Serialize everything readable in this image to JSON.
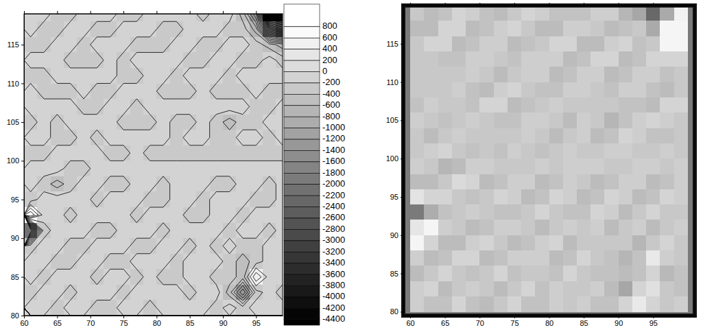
{
  "chart_data": [
    {
      "type": "contour",
      "x": [
        61,
        63,
        65,
        67,
        69,
        71,
        73,
        75,
        77,
        79,
        81,
        83,
        85,
        87,
        89,
        91,
        93,
        95,
        97,
        99
      ],
      "y": [
        119,
        117,
        115,
        113,
        111,
        109,
        107,
        105,
        103,
        101,
        99,
        97,
        95,
        93,
        91,
        89,
        87,
        85,
        83,
        81
      ],
      "cells": [
        [
          -100,
          -100,
          -300,
          -300,
          -100,
          -100,
          -100,
          -300,
          -300,
          -100,
          -100,
          -100,
          -100,
          -300,
          -100,
          -100,
          -500,
          -1400,
          -4400,
          -4400
        ],
        [
          -100,
          -300,
          -300,
          -100,
          -100,
          -300,
          -300,
          -100,
          -100,
          -100,
          -300,
          -300,
          -100,
          -100,
          -100,
          -300,
          -300,
          -700,
          -2400,
          -3000
        ],
        [
          -300,
          -300,
          -100,
          -100,
          -300,
          -100,
          -100,
          -100,
          -300,
          -300,
          -300,
          -100,
          -100,
          -300,
          -300,
          -100,
          -100,
          -300,
          -500,
          -700
        ],
        [
          -100,
          -100,
          -100,
          -300,
          -300,
          -300,
          -100,
          -300,
          -100,
          -100,
          -100,
          -100,
          -300,
          -300,
          -100,
          -100,
          -300,
          -300,
          -100,
          -300
        ],
        [
          -300,
          -300,
          -100,
          -100,
          -100,
          -100,
          -100,
          -300,
          -300,
          -100,
          -100,
          -300,
          -100,
          -100,
          -100,
          -300,
          -100,
          -100,
          -100,
          -100
        ],
        [
          -100,
          -300,
          -300,
          -300,
          -100,
          -300,
          -300,
          -100,
          -100,
          -100,
          -300,
          -300,
          -300,
          -100,
          -300,
          -300,
          -300,
          -100,
          -300,
          -300
        ],
        [
          -100,
          -100,
          -100,
          -100,
          -300,
          -300,
          -100,
          -100,
          -300,
          -100,
          -100,
          -100,
          -100,
          -100,
          -100,
          -100,
          -100,
          -300,
          -300,
          -100
        ],
        [
          -300,
          -100,
          -300,
          -100,
          -100,
          -100,
          -100,
          -300,
          -300,
          -300,
          -100,
          -300,
          -300,
          -100,
          -300,
          -500,
          -300,
          -300,
          -100,
          -100
        ],
        [
          -100,
          -100,
          -300,
          -300,
          -100,
          -300,
          -100,
          -100,
          -100,
          -100,
          -100,
          -300,
          -100,
          -100,
          -300,
          -300,
          -100,
          -100,
          -300,
          -100
        ],
        [
          -300,
          -300,
          -100,
          -100,
          -100,
          -100,
          -300,
          -300,
          -100,
          -300,
          -300,
          -300,
          -300,
          -300,
          -300,
          -300,
          -300,
          -300,
          -300,
          -300
        ],
        [
          -100,
          -100,
          -100,
          -300,
          -300,
          -100,
          -100,
          -100,
          -100,
          -100,
          -100,
          -100,
          -100,
          -100,
          -100,
          -100,
          -100,
          -100,
          -100,
          -100
        ],
        [
          -100,
          -300,
          -500,
          -300,
          -100,
          -100,
          -300,
          -300,
          -100,
          -100,
          -300,
          -100,
          -100,
          -100,
          -300,
          -300,
          -100,
          -100,
          -300,
          -100
        ],
        [
          -300,
          -100,
          -100,
          -100,
          -100,
          -300,
          -100,
          -100,
          -100,
          -300,
          -300,
          -100,
          -100,
          -300,
          -100,
          -100,
          -100,
          -300,
          -300,
          -100
        ],
        [
          600,
          -100,
          -100,
          -300,
          -100,
          -100,
          -100,
          -100,
          -300,
          -100,
          -100,
          -100,
          -300,
          -300,
          -100,
          -100,
          -300,
          -100,
          -100,
          -100
        ],
        [
          -2200,
          -300,
          -100,
          -100,
          -100,
          -300,
          -300,
          -100,
          -100,
          -100,
          -300,
          -100,
          -100,
          -100,
          -100,
          -300,
          -100,
          -100,
          -300,
          -100
        ],
        [
          -300,
          -100,
          -100,
          -300,
          -300,
          -100,
          -100,
          -100,
          -300,
          -300,
          -100,
          -100,
          -300,
          -100,
          -300,
          -100,
          -300,
          -300,
          -100,
          -100
        ],
        [
          -100,
          -100,
          -300,
          -300,
          -100,
          -100,
          -300,
          -300,
          -100,
          -100,
          -100,
          -300,
          -100,
          -100,
          -100,
          -300,
          -500,
          -300,
          -100,
          -100
        ],
        [
          -100,
          -300,
          -100,
          -100,
          -100,
          -300,
          -100,
          -100,
          -300,
          -100,
          -300,
          -300,
          -100,
          -100,
          -300,
          -300,
          -500,
          400,
          -100,
          -100
        ],
        [
          -300,
          -100,
          -100,
          -300,
          -100,
          -100,
          -100,
          -300,
          -100,
          -100,
          -100,
          -100,
          -300,
          -100,
          -100,
          -500,
          -1400,
          -300,
          -100,
          -300
        ],
        [
          -100,
          -100,
          -300,
          -100,
          -100,
          -300,
          -300,
          -100,
          -100,
          -300,
          -100,
          -100,
          -100,
          -100,
          -300,
          -100,
          -300,
          -100,
          -100,
          -100
        ]
      ],
      "xlim": [
        60,
        99
      ],
      "ylim": [
        80,
        119
      ],
      "xticks": [
        60,
        65,
        70,
        75,
        80,
        85,
        90,
        95
      ],
      "yticks": [
        80,
        85,
        90,
        95,
        100,
        105,
        110,
        115
      ],
      "colorbar_range": [
        -4500,
        1200
      ],
      "colorbar_ticks": [
        800,
        600,
        400,
        200,
        0,
        -200,
        -400,
        -600,
        -800,
        -1000,
        -1200,
        -1400,
        -1600,
        -1800,
        -2000,
        -2200,
        -2400,
        -2600,
        -2800,
        -3000,
        -3200,
        -3400,
        -3600,
        -3800,
        -4000,
        -4200,
        -4400
      ]
    },
    {
      "type": "shaded_relief",
      "x": [
        61,
        63,
        65,
        67,
        69,
        71,
        73,
        75,
        77,
        79,
        81,
        83,
        85,
        87,
        89,
        91,
        93,
        95,
        97,
        99
      ],
      "y": [
        119,
        117,
        115,
        113,
        111,
        109,
        107,
        105,
        103,
        101,
        99,
        97,
        95,
        93,
        91,
        89,
        87,
        85,
        83,
        81
      ],
      "cells": [
        [
          -100,
          -100,
          -300,
          -300,
          -100,
          -100,
          -100,
          -300,
          -300,
          -100,
          -100,
          -100,
          -100,
          -300,
          -100,
          -100,
          -500,
          -1400,
          -4400,
          -4400
        ],
        [
          -100,
          -300,
          -300,
          -100,
          -100,
          -300,
          -300,
          -100,
          -100,
          -100,
          -300,
          -300,
          -100,
          -100,
          -100,
          -300,
          -300,
          -700,
          -2400,
          -3000
        ],
        [
          -300,
          -300,
          -100,
          -100,
          -300,
          -100,
          -100,
          -100,
          -300,
          -300,
          -300,
          -100,
          -100,
          -300,
          -300,
          -100,
          -100,
          -300,
          -500,
          -700
        ],
        [
          -100,
          -100,
          -100,
          -300,
          -300,
          -300,
          -100,
          -300,
          -100,
          -100,
          -100,
          -100,
          -300,
          -300,
          -100,
          -100,
          -300,
          -300,
          -100,
          -300
        ],
        [
          -300,
          -300,
          -100,
          -100,
          -100,
          -100,
          -100,
          -300,
          -300,
          -100,
          -100,
          -300,
          -100,
          -100,
          -100,
          -300,
          -100,
          -100,
          -100,
          -100
        ],
        [
          -100,
          -300,
          -300,
          -300,
          -100,
          -300,
          -300,
          -100,
          -100,
          -100,
          -300,
          -300,
          -300,
          -100,
          -300,
          -300,
          -300,
          -100,
          -300,
          -300
        ],
        [
          -100,
          -100,
          -100,
          -100,
          -300,
          -300,
          -100,
          -100,
          -300,
          -100,
          -100,
          -100,
          -100,
          -100,
          -100,
          -100,
          -100,
          -300,
          -300,
          -100
        ],
        [
          -300,
          -100,
          -300,
          -100,
          -100,
          -100,
          -100,
          -300,
          -300,
          -300,
          -100,
          -300,
          -300,
          -100,
          -300,
          -500,
          -300,
          -300,
          -100,
          -100
        ],
        [
          -100,
          -100,
          -300,
          -300,
          -100,
          -300,
          -100,
          -100,
          -100,
          -100,
          -100,
          -300,
          -100,
          -100,
          -300,
          -300,
          -100,
          -100,
          -300,
          -100
        ],
        [
          -300,
          -300,
          -100,
          -100,
          -100,
          -100,
          -300,
          -300,
          -100,
          -300,
          -300,
          -300,
          -300,
          -300,
          -300,
          -300,
          -300,
          -300,
          -300,
          -300
        ],
        [
          -100,
          -100,
          -100,
          -300,
          -300,
          -100,
          -100,
          -100,
          -100,
          -100,
          -100,
          -100,
          -100,
          -100,
          -100,
          -100,
          -100,
          -100,
          -100,
          -100
        ],
        [
          -100,
          -300,
          -500,
          -300,
          -100,
          -100,
          -300,
          -300,
          -100,
          -100,
          -300,
          -100,
          -100,
          -100,
          -300,
          -300,
          -100,
          -100,
          -300,
          -100
        ],
        [
          -300,
          -100,
          -100,
          -100,
          -100,
          -300,
          -100,
          -100,
          -100,
          -300,
          -300,
          -100,
          -100,
          -300,
          -100,
          -100,
          -100,
          -300,
          -300,
          -100
        ],
        [
          600,
          -100,
          -100,
          -300,
          -100,
          -100,
          -100,
          -100,
          -300,
          -100,
          -100,
          -100,
          -300,
          -300,
          -100,
          -100,
          -300,
          -100,
          -100,
          -100
        ],
        [
          -2200,
          -300,
          -100,
          -100,
          -100,
          -300,
          -300,
          -100,
          -100,
          -100,
          -300,
          -100,
          -100,
          -100,
          -100,
          -300,
          -100,
          -100,
          -300,
          -100
        ],
        [
          -300,
          -100,
          -100,
          -300,
          -300,
          -100,
          -100,
          -100,
          -300,
          -300,
          -100,
          -100,
          -300,
          -100,
          -300,
          -100,
          -300,
          -300,
          -100,
          -100
        ],
        [
          -100,
          -100,
          -300,
          -300,
          -100,
          -100,
          -300,
          -300,
          -100,
          -100,
          -100,
          -300,
          -100,
          -100,
          -100,
          -300,
          -500,
          -300,
          -100,
          -100
        ],
        [
          -100,
          -300,
          -100,
          -100,
          -100,
          -300,
          -100,
          -100,
          -300,
          -100,
          -300,
          -300,
          -100,
          -100,
          -300,
          -300,
          -500,
          400,
          -100,
          -100
        ],
        [
          -300,
          -100,
          -100,
          -300,
          -100,
          -100,
          -100,
          -300,
          -100,
          -100,
          -100,
          -100,
          -300,
          -100,
          -100,
          -500,
          -1400,
          -300,
          -100,
          -300
        ],
        [
          -100,
          -100,
          -300,
          -100,
          -100,
          -300,
          -300,
          -100,
          -100,
          -300,
          -100,
          -100,
          -100,
          -100,
          -300,
          -100,
          -300,
          -100,
          -100,
          -100
        ]
      ],
      "xlim": [
        59,
        101
      ],
      "ylim": [
        79.5,
        120
      ],
      "xticks": [
        60,
        65,
        70,
        75,
        80,
        85,
        90,
        95
      ],
      "yticks": [
        80,
        85,
        90,
        95,
        100,
        105,
        110,
        115
      ]
    }
  ]
}
